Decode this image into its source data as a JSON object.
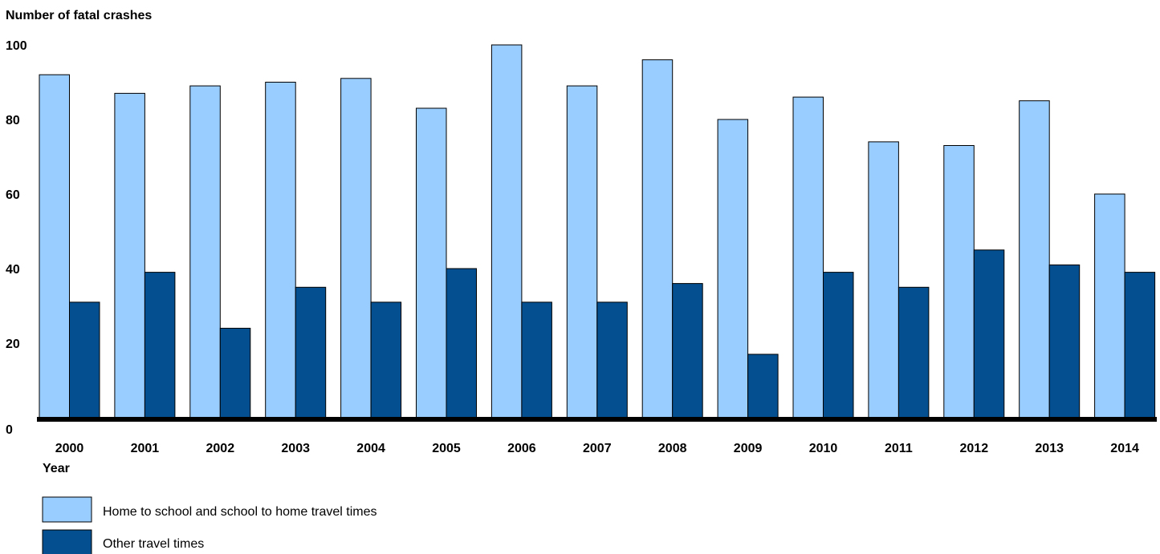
{
  "chart_data": {
    "type": "bar",
    "ylabel": "Number of fatal crashes",
    "xlabel": "Year",
    "ylim": [
      0,
      100
    ],
    "yticks": [
      "0",
      "20",
      "40",
      "60",
      "80",
      "100"
    ],
    "grid": false,
    "legend_position": "bottom-left",
    "categories": [
      "2000",
      "2001",
      "2002",
      "2003",
      "2004",
      "2005",
      "2006",
      "2007",
      "2008",
      "2009",
      "2010",
      "2011",
      "2012",
      "2013",
      "2014"
    ],
    "series": [
      {
        "name": "Home to school and school to home travel times",
        "color": "#99ccff",
        "values": [
          92,
          87,
          89,
          90,
          91,
          83,
          100,
          89,
          96,
          80,
          86,
          74,
          73,
          85,
          60
        ]
      },
      {
        "name": "Other travel times",
        "color": "#034f8f",
        "values": [
          31,
          39,
          24,
          35,
          31,
          40,
          31,
          31,
          36,
          17,
          39,
          35,
          45,
          41,
          39
        ]
      }
    ]
  }
}
